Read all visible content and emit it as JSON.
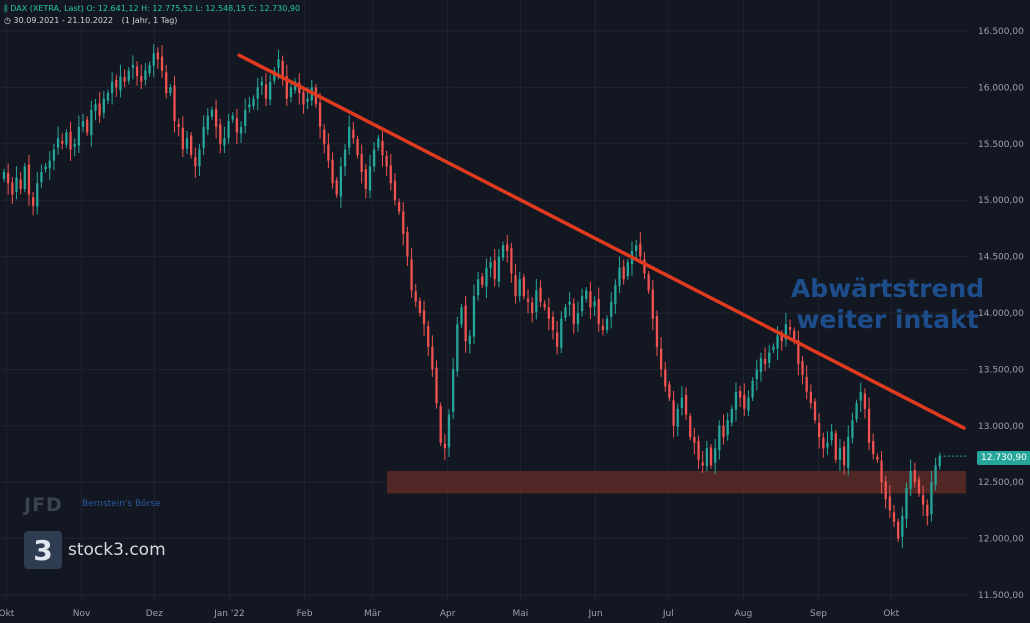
{
  "header": {
    "symbol": "DAX (XETRA, Last)",
    "ohlc": "O: 12.641,12  H: 12.775,52  L: 12.548,15  C: 12.730,90",
    "range": "30.09.2021 - 21.10.2022",
    "interval": "(1 Jahr, 1 Tag)"
  },
  "annotation": {
    "line1": "Abwärtstrend",
    "line2": "weiter intakt"
  },
  "last_price_label": "12.730,90",
  "logos": {
    "brand": "stock3.com",
    "brand_mark": "3",
    "jfd": "JFD",
    "bernstein": "Bernstein's Börse"
  },
  "colors": {
    "up": "#26a69a",
    "down": "#ef5350",
    "trendline": "#e03b1f",
    "support_zone": "#5c2a24",
    "background": "#131722",
    "grid": "#1f2430"
  },
  "chart_data": {
    "type": "candlestick",
    "title": "DAX (XETRA, Last)",
    "xlabel": "",
    "ylabel": "",
    "ylim": [
      11500,
      16600
    ],
    "y_ticks": [
      "16.500,00",
      "16.000,00",
      "15.500,00",
      "15.000,00",
      "14.500,00",
      "14.000,00",
      "13.500,00",
      "13.000,00",
      "12.500,00",
      "12.000,00",
      "11.500,00"
    ],
    "y_tick_values": [
      16500,
      16000,
      15500,
      15000,
      14500,
      14000,
      13500,
      13000,
      12500,
      12000,
      11500
    ],
    "x_ticks": [
      "Okt",
      "Nov",
      "Dez",
      "Jan '22",
      "Feb",
      "Mär",
      "Apr",
      "Mai",
      "Jun",
      "Jul",
      "Aug",
      "Sep",
      "Okt"
    ],
    "x_tick_dates": [
      "2021-10-01",
      "2021-11-01",
      "2021-12-01",
      "2022-01-01",
      "2022-02-01",
      "2022-03-01",
      "2022-04-01",
      "2022-05-01",
      "2022-06-01",
      "2022-07-01",
      "2022-08-01",
      "2022-09-01",
      "2022-10-01"
    ],
    "date_range": [
      "2021-09-30",
      "2022-10-21"
    ],
    "closes": [
      15250,
      15150,
      15050,
      15200,
      15100,
      15300,
      15050,
      14950,
      15150,
      15250,
      15300,
      15350,
      15450,
      15550,
      15500,
      15600,
      15450,
      15500,
      15650,
      15700,
      15600,
      15800,
      15850,
      15750,
      15900,
      15950,
      16050,
      16000,
      16100,
      16050,
      16150,
      16200,
      16100,
      16050,
      16150,
      16200,
      16300,
      16250,
      16150,
      15950,
      16000,
      15700,
      15650,
      15450,
      15550,
      15400,
      15300,
      15450,
      15650,
      15750,
      15800,
      15650,
      15500,
      15550,
      15700,
      15750,
      15600,
      15650,
      15800,
      15850,
      15900,
      16000,
      16050,
      15900,
      16050,
      16150,
      16250,
      16100,
      15900,
      16000,
      16050,
      15950,
      15850,
      15900,
      16000,
      15850,
      15650,
      15500,
      15350,
      15150,
      15050,
      15300,
      15450,
      15650,
      15550,
      15400,
      15250,
      15100,
      15300,
      15450,
      15550,
      15400,
      15300,
      15150,
      15000,
      14900,
      14700,
      14500,
      14200,
      14100,
      14000,
      13900,
      13700,
      13500,
      13200,
      12850,
      12800,
      13100,
      13500,
      13900,
      14050,
      13750,
      13800,
      14150,
      14300,
      14250,
      14400,
      14450,
      14300,
      14500,
      14600,
      14550,
      14350,
      14150,
      14300,
      14150,
      14100,
      14000,
      14200,
      14100,
      14050,
      13950,
      13850,
      13700,
      13950,
      14050,
      14100,
      13900,
      14000,
      14150,
      14200,
      14050,
      14100,
      13900,
      13850,
      13950,
      14100,
      14250,
      14400,
      14300,
      14450,
      14550,
      14600,
      14500,
      14350,
      14200,
      13950,
      13700,
      13500,
      13350,
      13250,
      13000,
      13150,
      13250,
      13100,
      12900,
      12850,
      12700,
      12650,
      12800,
      12650,
      12800,
      13000,
      12900,
      13050,
      13150,
      13300,
      13250,
      13150,
      13250,
      13400,
      13500,
      13600,
      13550,
      13650,
      13700,
      13800,
      13750,
      13900,
      13850,
      13750,
      13550,
      13450,
      13300,
      13200,
      13050,
      12900,
      12800,
      12850,
      12950,
      12700,
      12800,
      12650,
      12900,
      13050,
      13200,
      13300,
      13150,
      12850,
      12750,
      12700,
      12500,
      12350,
      12250,
      12150,
      12000,
      12200,
      12450,
      12600,
      12500,
      12400,
      12300,
      12200,
      12500,
      12650,
      12730.9
    ],
    "trendline": {
      "start": [
        "2022-01-05",
        16285
      ],
      "end": [
        "2022-10-31",
        12980
      ]
    },
    "support_zone": {
      "from_date": "2022-03-07",
      "y_range": [
        12400,
        12600
      ]
    },
    "last_price": 12730.9
  }
}
